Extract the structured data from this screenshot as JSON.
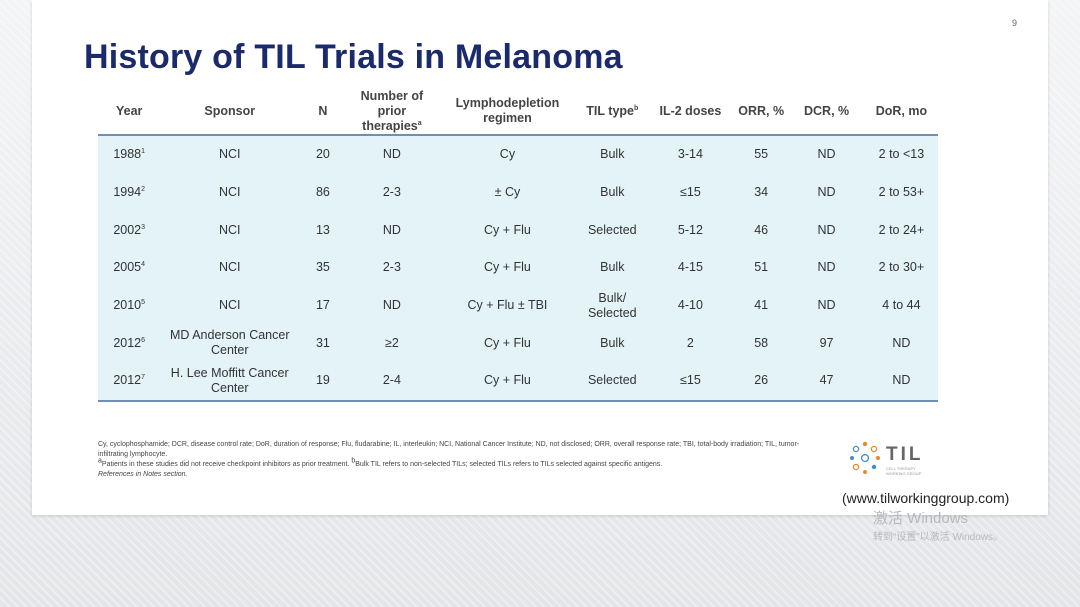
{
  "page_number": "9",
  "title": "History of TIL Trials in Melanoma",
  "table": {
    "headers": {
      "year": "Year",
      "sponsor": "Sponsor",
      "n": "N",
      "prior_therapies": "Number of prior therapies",
      "prior_therapies_sup": "a",
      "regimen": "Lymphodepletion regimen",
      "til_type": "TIL type",
      "til_type_sup": "b",
      "il2": "IL-2 doses",
      "orr": "ORR, %",
      "dcr": "DCR, %",
      "dor": "DoR, mo"
    },
    "rows": [
      {
        "year": "1988",
        "ref": "1",
        "sponsor": "NCI",
        "n": "20",
        "prior": "ND",
        "regimen": "Cy",
        "til": "Bulk",
        "il2": "3-14",
        "orr": "55",
        "dcr": "ND",
        "dor": "2 to <13"
      },
      {
        "year": "1994",
        "ref": "2",
        "sponsor": "NCI",
        "n": "86",
        "prior": "2-3",
        "regimen": "± Cy",
        "til": "Bulk",
        "il2": "≤15",
        "orr": "34",
        "dcr": "ND",
        "dor": "2 to 53+"
      },
      {
        "year": "2002",
        "ref": "3",
        "sponsor": "NCI",
        "n": "13",
        "prior": "ND",
        "regimen": "Cy + Flu",
        "til": "Selected",
        "il2": "5-12",
        "orr": "46",
        "dcr": "ND",
        "dor": "2 to 24+"
      },
      {
        "year": "2005",
        "ref": "4",
        "sponsor": "NCI",
        "n": "35",
        "prior": "2-3",
        "regimen": "Cy + Flu",
        "til": "Bulk",
        "il2": "4-15",
        "orr": "51",
        "dcr": "ND",
        "dor": "2 to 30+"
      },
      {
        "year": "2010",
        "ref": "5",
        "sponsor": "NCI",
        "n": "17",
        "prior": "ND",
        "regimen": "Cy + Flu ± TBI",
        "til": "Bulk/ Selected",
        "il2": "4-10",
        "orr": "41",
        "dcr": "ND",
        "dor": "4 to 44"
      },
      {
        "year": "2012",
        "ref": "6",
        "sponsor": "MD Anderson Cancer Center",
        "n": "31",
        "prior": "≥2",
        "regimen": "Cy + Flu",
        "til": "Bulk",
        "il2": "2",
        "orr": "58",
        "dcr": "97",
        "dor": "ND"
      },
      {
        "year": "2012",
        "ref": "7",
        "sponsor": "H. Lee Moffitt Cancer Center",
        "n": "19",
        "prior": "2-4",
        "regimen": "Cy + Flu",
        "til": "Selected",
        "il2": "≤15",
        "orr": "26",
        "dcr": "47",
        "dor": "ND"
      }
    ]
  },
  "footnotes": {
    "abbreviations": "Cy, cyclophosphamide; DCR, disease control rate; DoR, duration of response; Flu, fludarabine; IL, interleukin; NCI, National Cancer Institute; ND, not disclosed; ORR, overall response rate; TBI, total-body irradiation; TIL, tumor-infiltrating lymphocyte.",
    "note_a_mark": "a",
    "note_a": "Patients in these studies did not receive checkpoint inhibitors as prior treatment.",
    "note_b_mark": "b",
    "note_b": "Bulk TIL refers to non-selected TILs; selected TILs refers to TILs selected against specific antigens.",
    "references": "References in Notes section."
  },
  "logo": {
    "text": "TIL",
    "subtext": "CELL THERAPY WORKING GROUP"
  },
  "website": "(www.tilworkinggroup.com)",
  "watermark": {
    "line1": "激活 Windows",
    "line2": "转到“设置”以激活 Windows。"
  },
  "colors": {
    "title": "#1b2a6b",
    "table_body_bg": "#e3f3f8",
    "table_rule": "#6f8fb5",
    "logo_dot_orange": "#e8892b",
    "logo_dot_blue": "#3a8fd0"
  }
}
